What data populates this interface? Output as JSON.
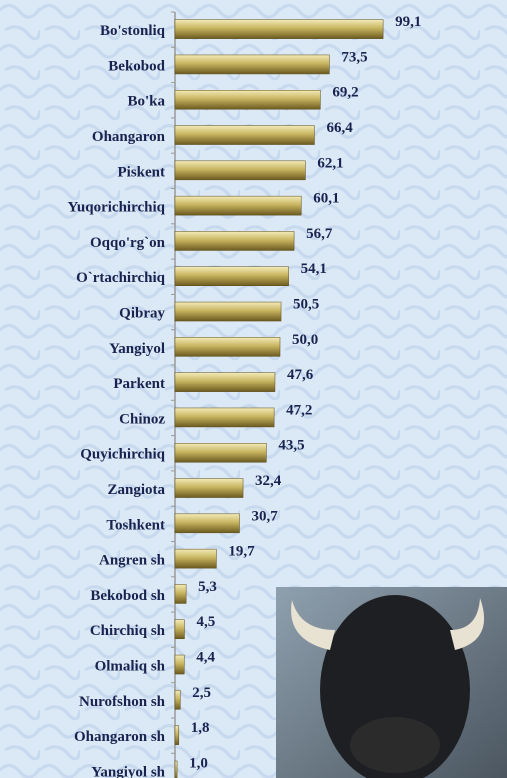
{
  "chart_data": {
    "type": "bar",
    "orientation": "horizontal",
    "categories": [
      "Bo'stonliq",
      "Bekobod",
      "Bo'ka",
      "Ohangaron",
      "Piskent",
      "Yuqorichirchiq",
      "Oqqo'rg`on",
      "O`rtachirchiq",
      "Qibray",
      "Yangiyol",
      "Parkent",
      "Chinoz",
      "Quyichirchiq",
      "Zangiota",
      "Toshkent",
      "Angren sh",
      "Bekobod sh",
      "Chirchiq sh",
      "Olmaliq sh",
      "Nurofshon sh",
      "Ohangaron sh",
      "Yangiyol sh"
    ],
    "values": [
      99.1,
      73.5,
      69.2,
      66.4,
      62.1,
      60.1,
      56.7,
      54.1,
      50.5,
      50.0,
      47.6,
      47.2,
      43.5,
      32.4,
      30.7,
      19.7,
      5.3,
      4.5,
      4.4,
      2.5,
      1.8,
      1.0
    ],
    "value_labels": [
      "99,1",
      "73,5",
      "69,2",
      "66,4",
      "62,1",
      "60,1",
      "56,7",
      "54,1",
      "50,5",
      "50,0",
      "47,6",
      "47,2",
      "43,5",
      "32,4",
      "30,7",
      "19,7",
      "5,3",
      "4,5",
      "4,4",
      "2,5",
      "1,8",
      "1,0"
    ],
    "color": "#c8b560",
    "xlim": [
      0,
      100
    ]
  }
}
